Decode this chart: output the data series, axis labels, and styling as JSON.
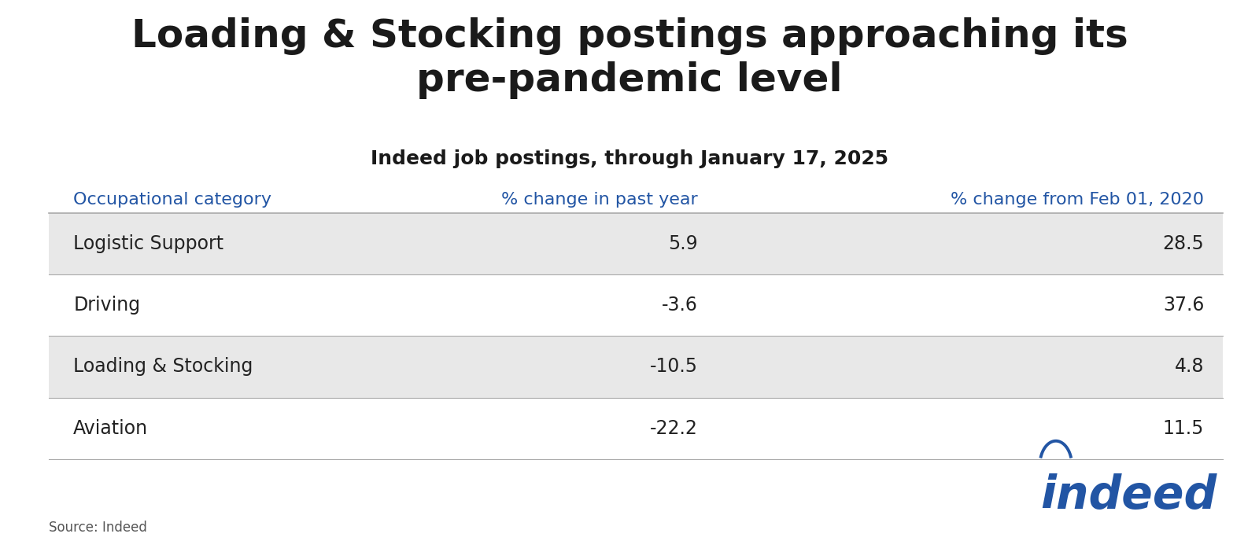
{
  "title": "Loading & Stocking postings approaching its\npre-pandemic level",
  "subtitle": "Indeed job postings, through January 17, 2025",
  "source": "Source: Indeed",
  "col_headers": [
    "Occupational category",
    "% change in past year",
    "% change from Feb 01, 2020"
  ],
  "rows": [
    [
      "Logistic Support",
      "5.9",
      "28.5"
    ],
    [
      "Driving",
      "-3.6",
      "37.6"
    ],
    [
      "Loading & Stocking",
      "-10.5",
      "4.8"
    ],
    [
      "Aviation",
      "-22.2",
      "11.5"
    ]
  ],
  "shaded_rows": [
    0,
    2
  ],
  "header_color": "#2255a4",
  "row_text_color": "#222222",
  "shaded_row_bg": "#e8e8e8",
  "white_row_bg": "#ffffff",
  "title_color": "#1a1a1a",
  "subtitle_color": "#1a1a1a",
  "indeed_blue": "#2255a4",
  "background_color": "#ffffff",
  "line_color": "#aaaaaa",
  "source_color": "#555555"
}
